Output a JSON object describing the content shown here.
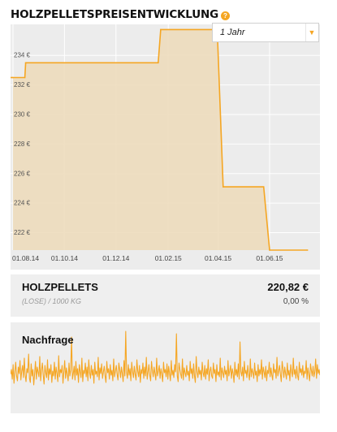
{
  "header": {
    "title": "HOLZPELLETSPREISENTWICKLUNG",
    "help_icon": "?"
  },
  "range_selector": {
    "value": "1 Jahr",
    "icon": "chevron-down-icon"
  },
  "colors": {
    "line": "#f5a623",
    "area_fill": "#eddbbd",
    "plot_bg": "#ececec",
    "grid": "#ffffff",
    "accent": "#f5a623"
  },
  "chart_data": [
    {
      "type": "area",
      "x_tick_labels": [
        "01.08.14",
        "01.10.14",
        "01.12.14",
        "01.02.15",
        "01.04.15",
        "01.06.15"
      ],
      "y_tick_labels": [
        "222 €",
        "224 €",
        "226 €",
        "228 €",
        "230 €",
        "232 €",
        "234 €"
      ],
      "y_ticks": [
        222,
        224,
        226,
        228,
        230,
        232,
        234
      ],
      "ylim": [
        220.82,
        236.1
      ],
      "grid": true,
      "line_shape": "step",
      "series": [
        {
          "points": [
            {
              "x": "2014-08-01",
              "y": 232.5
            },
            {
              "x": "2014-08-15",
              "y": 232.5
            },
            {
              "x": "2014-08-16",
              "y": 233.5
            },
            {
              "x": "2015-01-20",
              "y": 233.5
            },
            {
              "x": "2015-01-23",
              "y": 235.75
            },
            {
              "x": "2015-03-31",
              "y": 235.75
            },
            {
              "x": "2015-04-07",
              "y": 225.1
            },
            {
              "x": "2015-05-25",
              "y": 225.1
            },
            {
              "x": "2015-06-01",
              "y": 220.82
            },
            {
              "x": "2015-07-16",
              "y": 220.82
            }
          ]
        }
      ]
    },
    {
      "type": "line",
      "title": "Nachfrage",
      "values": [
        46,
        52,
        40,
        58,
        35,
        49,
        61,
        44,
        38,
        55,
        47,
        63,
        39,
        50,
        57,
        42,
        66,
        45,
        37,
        53,
        48,
        71,
        41,
        36,
        59,
        44,
        52,
        33,
        47,
        62,
        40,
        55,
        49,
        43,
        68,
        38,
        51,
        60,
        45,
        34,
        57,
        48,
        42,
        64,
        39,
        53,
        46,
        58,
        36,
        50,
        44,
        61,
        40,
        55,
        47,
        37,
        69,
        43,
        52,
        48,
        57,
        35,
        49,
        63,
        41,
        54,
        46,
        38,
        60,
        44,
        51,
        92,
        40,
        47,
        56,
        39,
        62,
        45,
        53,
        36,
        58,
        49,
        42,
        66,
        37,
        51,
        47,
        60,
        43,
        55,
        38,
        64,
        48,
        41,
        57,
        45,
        52,
        35,
        61,
        46,
        50,
        43,
        67,
        39,
        54,
        47,
        59,
        41,
        49,
        56,
        44,
        36,
        62,
        48,
        53,
        40,
        58,
        45,
        51,
        38,
        65,
        43,
        50,
        57,
        46,
        39,
        60,
        52,
        42,
        55,
        47,
        37,
        63,
        44,
        99,
        48,
        41,
        58,
        45,
        53,
        38,
        61,
        49,
        42,
        56,
        46,
        39,
        64,
        50,
        43,
        57,
        36,
        52,
        47,
        60,
        41,
        55,
        44,
        67,
        40,
        49,
        58,
        45,
        38,
        62,
        51,
        43,
        55,
        47,
        39,
        66,
        44,
        50,
        57,
        41,
        53,
        46,
        37,
        61,
        48,
        52,
        43,
        59,
        40,
        56,
        47,
        38,
        63,
        45,
        51,
        42,
        58,
        49,
        96,
        44,
        37,
        60,
        52,
        46,
        41,
        65,
        39,
        54,
        48,
        43,
        57,
        45,
        50,
        38,
        62,
        47,
        53,
        41,
        59,
        44,
        36,
        68,
        49,
        42,
        55,
        46,
        51,
        39,
        61,
        48,
        43,
        57,
        40,
        53,
        46,
        64,
        38,
        50,
        55,
        44,
        41,
        60,
        47,
        52,
        37,
        58,
        45,
        49,
        43,
        66,
        39,
        54,
        48,
        42,
        56,
        46,
        51,
        38,
        63,
        44,
        50,
        57,
        41,
        53,
        47,
        36,
        61,
        45,
        52,
        43,
        59,
        40,
        86,
        49,
        44,
        55,
        38,
        62,
        47,
        51,
        42,
        57,
        46,
        39,
        65,
        43,
        53,
        48,
        41,
        60,
        45,
        50,
        37,
        58,
        44,
        52,
        46,
        64,
        40,
        55,
        49,
        42,
        56,
        38,
        51,
        47,
        61,
        43,
        54,
        45,
        39,
        59,
        48,
        52,
        41,
        67,
        44,
        50,
        57,
        46,
        37,
        62,
        53,
        42,
        55,
        47,
        40,
        60,
        45,
        51,
        38,
        58,
        49,
        43,
        66,
        46,
        52,
        41,
        56,
        44,
        39,
        61,
        48,
        53,
        45,
        57,
        42,
        50,
        47,
        63,
        40,
        54,
        46,
        38,
        59,
        51,
        44,
        56,
        43,
        49,
        65,
        41,
        58,
        47,
        52,
        45
      ]
    }
  ],
  "product": {
    "name": "HOLZPELLETS",
    "unit": "(LOSE) / 1000 KG",
    "price": "220,82 €",
    "change": "0,00 %"
  }
}
